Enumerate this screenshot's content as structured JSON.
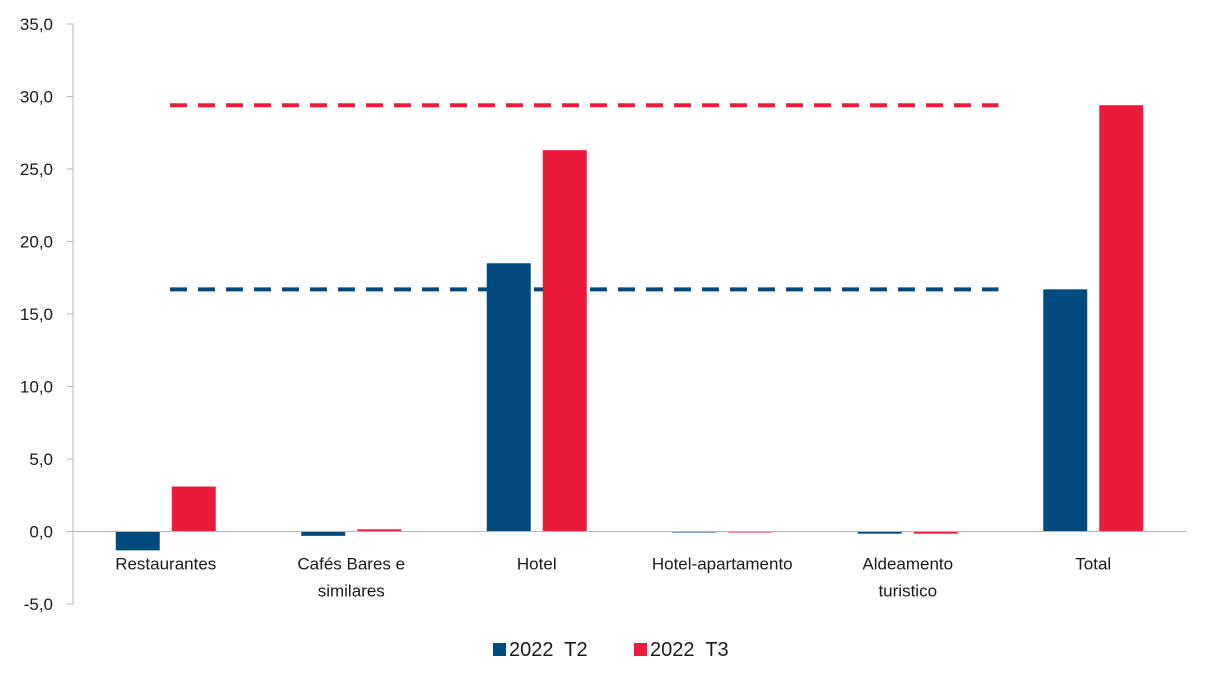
{
  "chart_data": {
    "type": "bar",
    "title": "",
    "xlabel": "",
    "ylabel": "",
    "ylim": [
      -5,
      35
    ],
    "ytick_step": 5,
    "ytick_labels": [
      "-5,0",
      "0,0",
      "5,0",
      "10,0",
      "15,0",
      "20,0",
      "25,0",
      "30,0",
      "35,0"
    ],
    "categories": [
      [
        "Restaurantes"
      ],
      [
        "Cafés Bares e",
        "similares"
      ],
      [
        "Hotel"
      ],
      [
        "Hotel-apartamento"
      ],
      [
        "Aldeamento",
        "turistico"
      ],
      [
        "Total"
      ]
    ],
    "series": [
      {
        "name": "2022  T2",
        "color": "#004a80",
        "values": [
          -1.3,
          -0.3,
          18.5,
          -0.05,
          -0.15,
          16.7
        ]
      },
      {
        "name": "2022  T3",
        "color": "#ec1b3c",
        "values": [
          3.1,
          0.15,
          26.3,
          0.0,
          -0.15,
          29.4
        ]
      }
    ],
    "reference_lines": [
      {
        "series": "2022  T3",
        "value": 29.4,
        "color": "#ec1b3c",
        "style": "dashed"
      },
      {
        "series": "2022  T2",
        "value": 16.7,
        "color": "#004a80",
        "style": "dashed"
      }
    ],
    "grid": false,
    "legend_position": "bottom"
  }
}
